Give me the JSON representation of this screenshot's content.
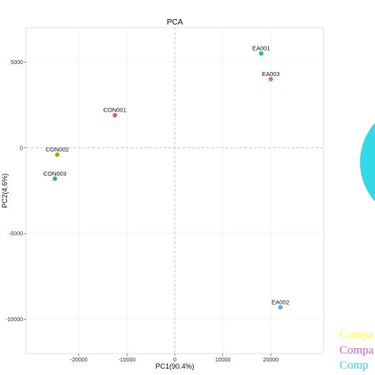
{
  "chart_data": {
    "type": "scatter",
    "title": "PCA",
    "xlabel": "PC1(90.4%)",
    "ylabel": "PC2(4.6%)",
    "xlim": [
      -31000,
      31000
    ],
    "ylim": [
      -12000,
      7000
    ],
    "x_ticks": [
      -20000,
      -10000,
      0,
      10000,
      20000
    ],
    "x_tick_labels": [
      "-20000",
      "-10000",
      "0",
      "10000",
      "20000"
    ],
    "y_ticks": [
      5000,
      0,
      -5000,
      -10000
    ],
    "y_tick_labels": [
      "5000",
      "0",
      "-5000",
      "-10000"
    ],
    "grid": true,
    "reference_lines": [
      0
    ],
    "points": [
      {
        "label": "EA001",
        "x": 18000,
        "y": 5500,
        "color": "#1fbf8f"
      },
      {
        "label": "EA003",
        "x": 20000,
        "y": 4000,
        "color": "#e05ad6"
      },
      {
        "label": "CON001",
        "x": -12500,
        "y": 1900,
        "color": "#f0516b"
      },
      {
        "label": "CON002",
        "x": -24500,
        "y": -400,
        "color": "#a3a500"
      },
      {
        "label": "CON003",
        "x": -25000,
        "y": -1800,
        "color": "#39b54a"
      },
      {
        "label": "EA002",
        "x": 22000,
        "y": -9300,
        "color": "#5aa6ff"
      }
    ]
  },
  "side_panel": {
    "circle_color": "#33d9e6",
    "legend": [
      {
        "text": "Compa",
        "color": "#ffff33"
      },
      {
        "text": "Compa",
        "color": "#e05ad6"
      },
      {
        "text": "Comp",
        "color": "#33d9e6"
      }
    ]
  }
}
